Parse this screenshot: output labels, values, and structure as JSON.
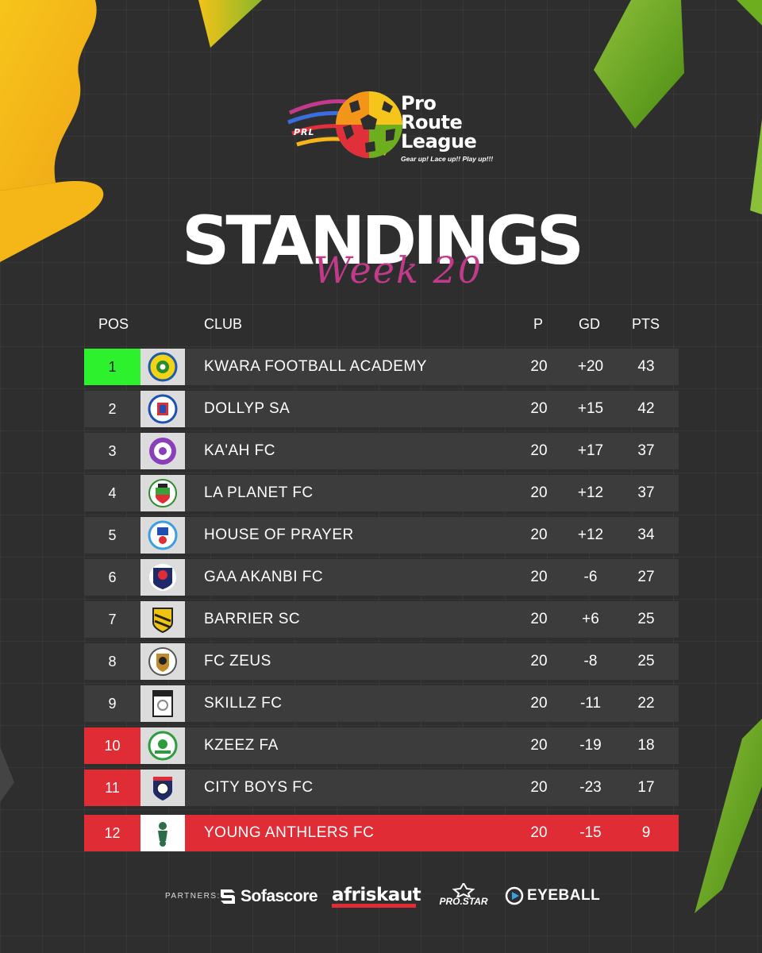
{
  "league": {
    "abbr": "PRL",
    "name_lines": [
      "Pro",
      "Route",
      "League"
    ],
    "tagline": "Gear up! Lace up!! Play up!!!"
  },
  "title": "STANDINGS",
  "subtitle": "Week 20",
  "table": {
    "headers": {
      "pos": "POS",
      "club": "CLUB",
      "p": "P",
      "gd": "GD",
      "pts": "PTS"
    },
    "rows": [
      {
        "pos": "1",
        "club": "KWARA FOOTBALL ACADEMY",
        "p": "20",
        "gd": "+20",
        "pts": "43",
        "badge_icon": "kwara-football-academy-crest-icon"
      },
      {
        "pos": "2",
        "club": "DOLLYP SA",
        "p": "20",
        "gd": "+15",
        "pts": "42",
        "badge_icon": "dollyp-sa-crest-icon"
      },
      {
        "pos": "3",
        "club": "KA'AH FC",
        "p": "20",
        "gd": "+17",
        "pts": "37",
        "badge_icon": "kaah-fc-crest-icon"
      },
      {
        "pos": "4",
        "club": "LA PLANET FC",
        "p": "20",
        "gd": "+12",
        "pts": "37",
        "badge_icon": "la-planet-fc-crest-icon"
      },
      {
        "pos": "5",
        "club": "HOUSE OF PRAYER",
        "p": "20",
        "gd": "+12",
        "pts": "34",
        "badge_icon": "house-of-prayer-crest-icon"
      },
      {
        "pos": "6",
        "club": "GAA AKANBI FC",
        "p": "20",
        "gd": "-6",
        "pts": "27",
        "badge_icon": "gaa-akanbi-fc-crest-icon"
      },
      {
        "pos": "7",
        "club": "BARRIER SC",
        "p": "20",
        "gd": "+6",
        "pts": "25",
        "badge_icon": "barrier-sc-crest-icon"
      },
      {
        "pos": "8",
        "club": "FC ZEUS",
        "p": "20",
        "gd": "-8",
        "pts": "25",
        "badge_icon": "fc-zeus-crest-icon"
      },
      {
        "pos": "9",
        "club": "SKILLZ FC",
        "p": "20",
        "gd": "-11",
        "pts": "22",
        "badge_icon": "skillz-fc-crest-icon"
      },
      {
        "pos": "10",
        "club": "KZEEZ FA",
        "p": "20",
        "gd": "-19",
        "pts": "18",
        "badge_icon": "kzeez-fa-crest-icon"
      },
      {
        "pos": "11",
        "club": "CITY BOYS FC",
        "p": "20",
        "gd": "-23",
        "pts": "17",
        "badge_icon": "city-boys-fc-crest-icon"
      },
      {
        "pos": "12",
        "club": "YOUNG ANTHLERS FC",
        "p": "20",
        "gd": "-15",
        "pts": "9",
        "badge_icon": "young-anthlers-fc-crest-icon"
      }
    ]
  },
  "partners": {
    "label": "PARTNERS:",
    "items": [
      {
        "name": "Sofascore",
        "icon": "sofascore-logo-icon"
      },
      {
        "name": "afriskaut",
        "icon": "afriskaut-logo"
      },
      {
        "name": "PRO.STAR",
        "icon": "prostar-star-icon"
      },
      {
        "name": "EYEBALL",
        "icon": "eyeball-logo-icon"
      }
    ]
  },
  "colors": {
    "background": "#2e2e2e",
    "row": "#3c3c3c",
    "promotion": "#2cf12c",
    "relegation": "#e02c34",
    "accent_yellow": "#f4c20d",
    "accent_green": "#6cae1e",
    "accent_magenta": "#c23a8a"
  }
}
